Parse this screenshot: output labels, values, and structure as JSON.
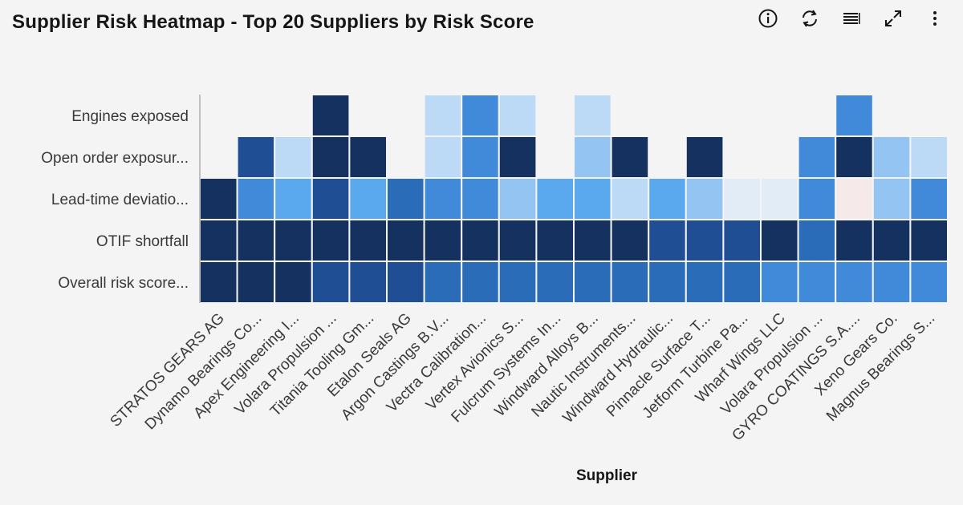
{
  "header": {
    "title": "Supplier Risk Heatmap - Top 20 Suppliers by Risk Score"
  },
  "toolbar": {
    "icons": [
      "info-icon",
      "refresh-icon",
      "list-icon",
      "expand-icon",
      "overflow-menu-icon"
    ]
  },
  "colors": {
    "background": "#f4f4f4",
    "scale": [
      "#f5e9e9",
      "#e1ecf6",
      "#bcdaf5",
      "#93c4f2",
      "#5aa9ef",
      "#418ada",
      "#2b6cb8",
      "#1f4e94",
      "#14315f"
    ]
  },
  "chart_data": {
    "type": "heatmap",
    "title": "Supplier Risk Heatmap - Top 20 Suppliers by Risk Score",
    "xlabel": "Supplier",
    "ylabel": "",
    "rows": [
      "Engines exposed",
      "Open order exposur...",
      "Lead-time deviatio...",
      "OTIF shortfall",
      "Overall risk score..."
    ],
    "columns": [
      "STRATOS GEARS AG",
      "Dynamo Bearings Co...",
      "Apex Engineering I...",
      "Volara Propulsion ...",
      "Titania Tooling Gm...",
      "Etalon Seals AG",
      "Argon Castings B.V...",
      "Vectra Calibration...",
      "Vertex Avionics S...",
      "Fulcrum Systems In...",
      "Windward Alloys B...",
      "Nautic Instruments...",
      "Windward Hydraulic...",
      "Pinnacle Surface T...",
      "Jetform Turbine Pa...",
      "Wharf Wings LLC",
      "Volara Propulsion ...",
      "GYRO COATINGS S.A....",
      "Xeno Gears Co.",
      "Magnus Bearings S..."
    ],
    "levels": [
      [
        null,
        null,
        null,
        8,
        null,
        null,
        2,
        5,
        2,
        null,
        2,
        null,
        null,
        null,
        null,
        null,
        null,
        5,
        null,
        null
      ],
      [
        null,
        7,
        2,
        8,
        8,
        null,
        2,
        5,
        8,
        null,
        3,
        8,
        null,
        8,
        null,
        null,
        5,
        8,
        3,
        2
      ],
      [
        8,
        5,
        4,
        7,
        4,
        6,
        5,
        5,
        3,
        4,
        4,
        2,
        4,
        3,
        1,
        1,
        5,
        0,
        3,
        5
      ],
      [
        8,
        8,
        8,
        8,
        8,
        8,
        8,
        8,
        8,
        8,
        8,
        8,
        7,
        7,
        7,
        8,
        6,
        8,
        8,
        8
      ],
      [
        8,
        8,
        8,
        7,
        7,
        7,
        6,
        6,
        6,
        6,
        6,
        6,
        6,
        6,
        6,
        5,
        5,
        5,
        5,
        5
      ]
    ],
    "legend": "none",
    "grid": false
  }
}
